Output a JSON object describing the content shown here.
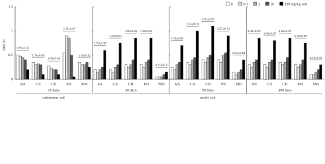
{
  "chart_data": [
    {
      "type": "bar",
      "ylabel": "AWCD",
      "ylim": [
        0,
        1.5
      ],
      "yticks": [
        0,
        0.5,
        1,
        1.5
      ],
      "categories": [
        "AA",
        "CA",
        "CH",
        "Pol",
        "Mix"
      ],
      "series": [
        {
          "name": "0",
          "color": "#ffffff",
          "values": [
            0.5,
            0.35,
            0.28,
            0.55,
            0.35
          ]
        },
        {
          "name": "0.1",
          "color": "#e0e0e0",
          "values": [
            0.48,
            0.3,
            0.22,
            0.9,
            0.3
          ]
        },
        {
          "name": "1",
          "color": "#a8a8a8",
          "values": [
            0.45,
            0.32,
            0.2,
            0.85,
            0.3
          ]
        },
        {
          "name": "10",
          "color": "#555555",
          "values": [
            0.4,
            0.3,
            0.2,
            0.5,
            0.35
          ]
        },
        {
          "name": "100 mg/kg soil",
          "color": "#000000",
          "values": [
            0.2,
            0.1,
            0.1,
            0.05,
            0.25
          ]
        }
      ],
      "annotations": [
        "1.85±0.12",
        "1.74±0.06",
        "1.09±0.04",
        "3.15±0.07",
        "1.19±0.02"
      ],
      "period": "30 days",
      "soil": "calcareous soil"
    },
    {
      "type": "bar",
      "ylim": [
        0,
        1.5
      ],
      "yticks": [
        0,
        0.5,
        1,
        1.5
      ],
      "categories": [
        "AA",
        "CA",
        "CH",
        "Pol",
        "Mix"
      ],
      "series": [
        {
          "color": "#ffffff",
          "values": [
            0.2,
            0.2,
            0.3,
            0.3,
            0.05
          ]
        },
        {
          "color": "#e0e0e0",
          "values": [
            0.15,
            0.15,
            0.25,
            0.25,
            0.05
          ]
        },
        {
          "color": "#a8a8a8",
          "values": [
            0.2,
            0.25,
            0.3,
            0.35,
            0.05
          ]
        },
        {
          "color": "#555555",
          "values": [
            0.25,
            0.3,
            0.4,
            0.4,
            0.1
          ]
        },
        {
          "color": "#000000",
          "values": [
            0.6,
            0.75,
            0.85,
            0.85,
            0.15
          ]
        }
      ],
      "annotations": [
        "1.59±0.04",
        "1.50±0.04",
        "1.90±0.06",
        "1.90±0.02",
        "0.25±0.01"
      ],
      "period": "30 days"
    },
    {
      "type": "bar",
      "ylim": [
        0,
        1.5
      ],
      "yticks": [
        0,
        0.5,
        1,
        1.5
      ],
      "categories": [
        "AA",
        "CA",
        "CH",
        "Pol",
        "Mix"
      ],
      "series": [
        {
          "color": "#ffffff",
          "values": [
            0.25,
            0.35,
            0.4,
            0.4,
            0.15
          ]
        },
        {
          "color": "#e0e0e0",
          "values": [
            0.2,
            0.3,
            0.35,
            0.35,
            0.1
          ]
        },
        {
          "color": "#a8a8a8",
          "values": [
            0.3,
            0.4,
            0.45,
            0.5,
            0.15
          ]
        },
        {
          "color": "#555555",
          "values": [
            0.35,
            0.45,
            0.5,
            0.55,
            0.2
          ]
        },
        {
          "color": "#000000",
          "values": [
            0.7,
            1.0,
            1.1,
            0.9,
            0.4
          ]
        }
      ],
      "annotations": [
        "1.59±0.06",
        "1.63±0.03",
        "1.81±0.07",
        "2.27±0.14",
        "0.51±0.04"
      ],
      "period": "90 days",
      "soil": "acidic soil"
    },
    {
      "type": "bar",
      "ylim": [
        0,
        1.5
      ],
      "yticks": [
        0,
        0.5,
        1,
        1.5
      ],
      "categories": [
        "AA",
        "CA",
        "CH",
        "Pol",
        "Mix"
      ],
      "series": [
        {
          "color": "#ffffff",
          "values": [
            0.3,
            0.3,
            0.35,
            0.3,
            0.1
          ]
        },
        {
          "color": "#e0e0e0",
          "values": [
            0.25,
            0.25,
            0.3,
            0.25,
            0.1
          ]
        },
        {
          "color": "#a8a8a8",
          "values": [
            0.35,
            0.35,
            0.35,
            0.3,
            0.15
          ]
        },
        {
          "color": "#555555",
          "values": [
            0.4,
            0.4,
            0.45,
            0.4,
            0.2
          ]
        },
        {
          "color": "#000000",
          "values": [
            0.85,
            0.8,
            0.85,
            0.75,
            0.3
          ]
        }
      ],
      "annotations": [
        "1.24±0.09",
        "1.06±0.05",
        "1.96±0.05",
        "2.19±0.06",
        "0.57±0.05"
      ],
      "period": "180 days"
    }
  ]
}
